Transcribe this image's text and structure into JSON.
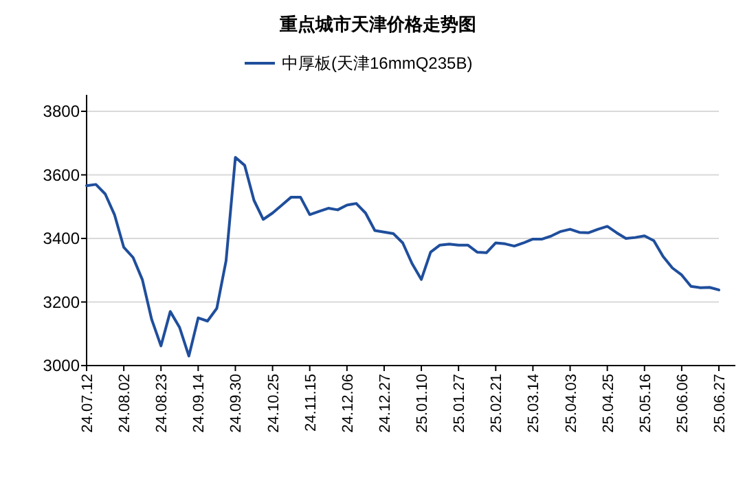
{
  "chart_data": {
    "type": "line",
    "title": "重点城市天津价格走势图",
    "categories": [
      "24.07.12",
      null,
      null,
      null,
      "24.08.02",
      null,
      null,
      null,
      "24.08.23",
      null,
      null,
      null,
      "24.09.14",
      null,
      null,
      null,
      "24.09.30",
      null,
      null,
      null,
      "24.10.25",
      null,
      null,
      null,
      "24.11.15",
      null,
      null,
      null,
      "24.12.06",
      null,
      null,
      null,
      "24.12.27",
      null,
      null,
      null,
      "25.01.10",
      null,
      null,
      null,
      "25.01.27",
      null,
      null,
      null,
      "25.02.21",
      null,
      null,
      null,
      "25.03.14",
      null,
      null,
      null,
      "25.04.03",
      null,
      null,
      null,
      "25.04.25",
      null,
      null,
      null,
      "25.05.16",
      null,
      null,
      null,
      "25.06.06",
      null,
      null,
      null,
      "25.06.27"
    ],
    "series": [
      {
        "name": "中厚板(天津16mmQ235B)",
        "color": "#1f4e9c",
        "values": [
          3566,
          3570,
          3540,
          3475,
          3372,
          3340,
          3270,
          3145,
          3062,
          3170,
          3120,
          3030,
          3150,
          3140,
          3180,
          3330,
          3655,
          3630,
          3520,
          3460,
          3480,
          3505,
          3530,
          3530,
          3475,
          3485,
          3495,
          3490,
          3505,
          3510,
          3480,
          3425,
          3420,
          3415,
          3386,
          3321,
          3271,
          3357,
          3379,
          3382,
          3379,
          3379,
          3357,
          3355,
          3386,
          3383,
          3376,
          3386,
          3398,
          3398,
          3408,
          3422,
          3429,
          3419,
          3418,
          3429,
          3438,
          3418,
          3400,
          3403,
          3408,
          3393,
          3343,
          3307,
          3285,
          3249,
          3245,
          3246,
          3238
        ]
      }
    ],
    "ylim": [
      3000,
      3800
    ],
    "yticks": [
      3000,
      3200,
      3400,
      3600,
      3800
    ],
    "grid": "y",
    "legend": "top",
    "marker": "none",
    "line_style": "solid"
  }
}
